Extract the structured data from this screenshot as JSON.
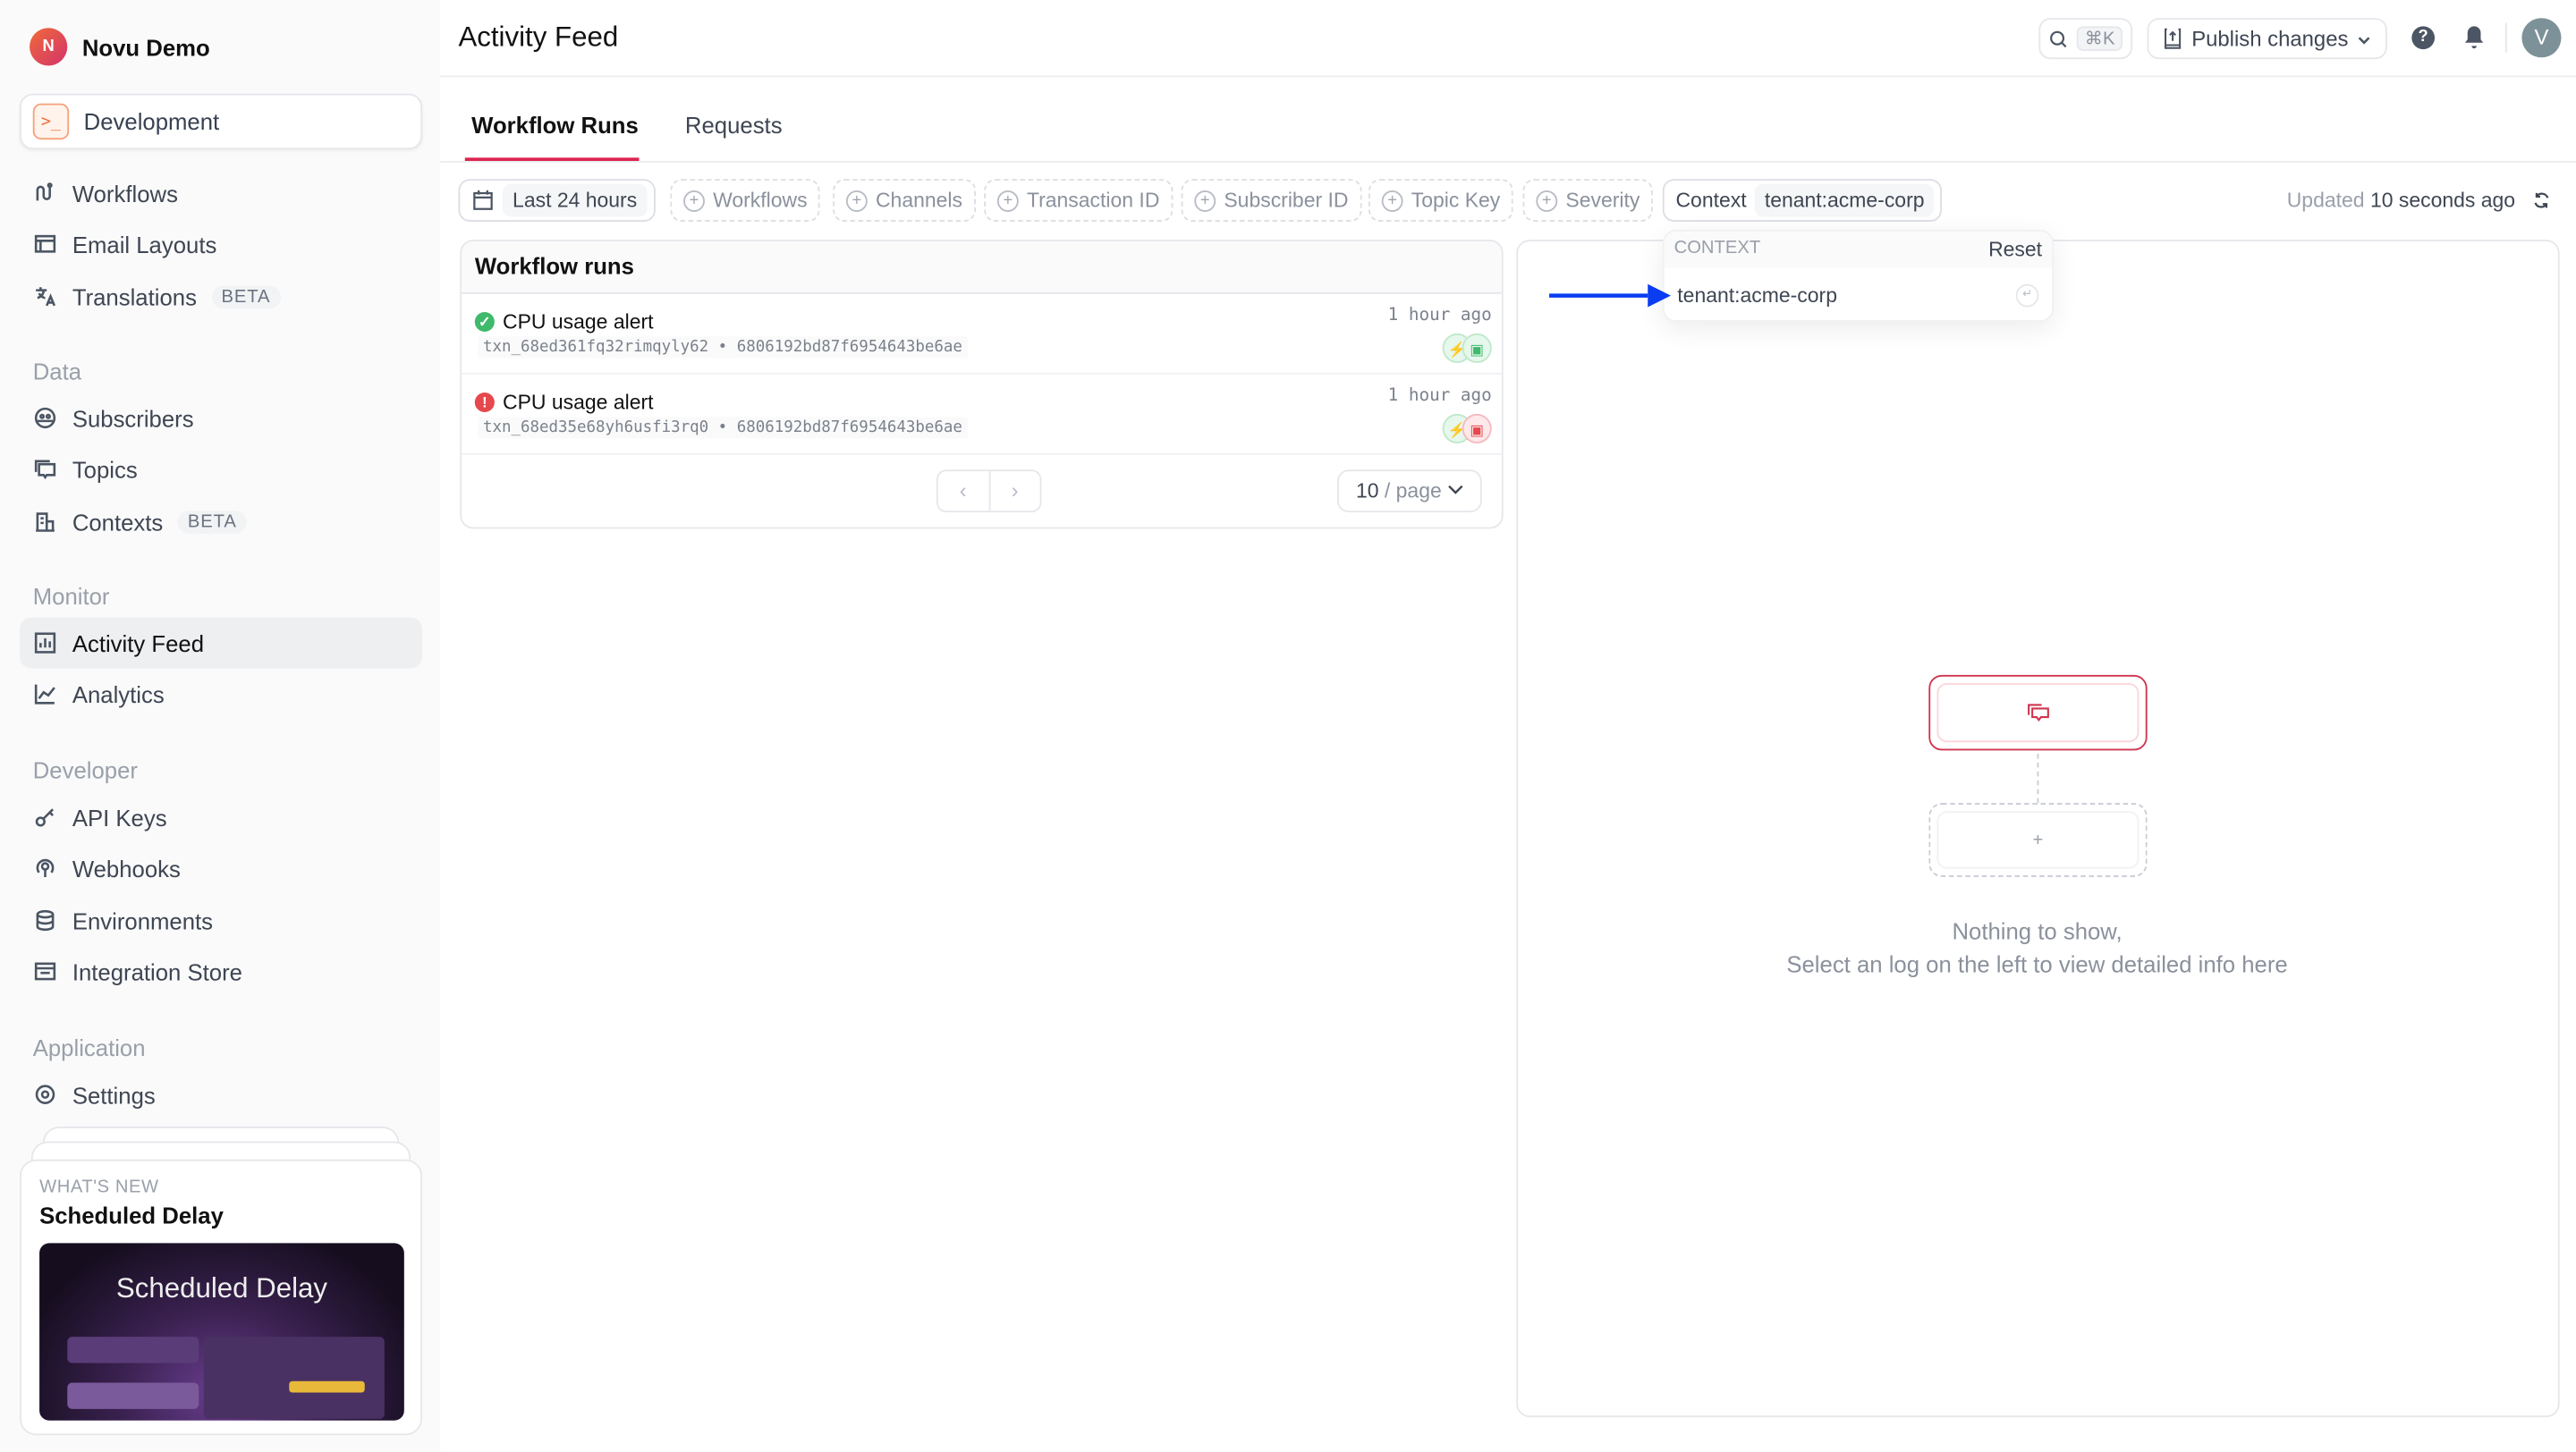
{
  "sidebar": {
    "org": {
      "initial": "N",
      "name": "Novu Demo"
    },
    "environment": {
      "label": "Development",
      "icon": "terminal-icon"
    },
    "items_top": [
      {
        "label": "Workflows",
        "icon": "workflow-icon"
      },
      {
        "label": "Email Layouts",
        "icon": "layout-icon"
      },
      {
        "label": "Translations",
        "icon": "translate-icon",
        "badge": "BETA"
      }
    ],
    "sections": {
      "data": "Data",
      "monitor": "Monitor",
      "developer": "Developer",
      "application": "Application"
    },
    "items_data": [
      {
        "label": "Subscribers",
        "icon": "subscribers-icon"
      },
      {
        "label": "Topics",
        "icon": "topics-icon"
      },
      {
        "label": "Contexts",
        "icon": "building-icon",
        "badge": "BETA"
      }
    ],
    "items_monitor": [
      {
        "label": "Activity Feed",
        "icon": "activity-icon",
        "active": true
      },
      {
        "label": "Analytics",
        "icon": "chart-icon"
      }
    ],
    "items_developer": [
      {
        "label": "API Keys",
        "icon": "key-icon"
      },
      {
        "label": "Webhooks",
        "icon": "webhook-icon"
      },
      {
        "label": "Environments",
        "icon": "database-icon"
      },
      {
        "label": "Integration Store",
        "icon": "store-icon"
      }
    ],
    "items_application": [
      {
        "label": "Settings",
        "icon": "gear-icon"
      }
    ],
    "whats_new": {
      "kicker": "WHAT'S NEW",
      "title": "Scheduled Delay",
      "image_title": "Scheduled Delay"
    }
  },
  "header": {
    "title": "Activity Feed",
    "search_shortcut": "⌘K",
    "publish_label": "Publish changes",
    "avatar_initial": "V"
  },
  "tabs": [
    {
      "label": "Workflow Runs",
      "active": true
    },
    {
      "label": "Requests",
      "active": false
    }
  ],
  "filters": {
    "date": "Last 24 hours",
    "chips": [
      "Workflows",
      "Channels",
      "Transaction ID",
      "Subscriber ID",
      "Topic Key",
      "Severity"
    ],
    "context": {
      "label": "Context",
      "value": "tenant:acme-corp"
    },
    "updated_prefix": "Updated",
    "updated_value": "10 seconds ago"
  },
  "runs": {
    "title": "Workflow runs",
    "rows": [
      {
        "name": "CPU usage alert",
        "status": "success",
        "txn": "txn_68ed361fq32rimqyly62",
        "subscriber": "6806192bd87f6954643be6ae",
        "time": "1 hour ago"
      },
      {
        "name": "CPU usage alert",
        "status": "error",
        "txn": "txn_68ed35e68yh6usfi3rq0",
        "subscriber": "6806192bd87f6954643be6ae",
        "time": "1 hour ago"
      }
    ],
    "separator": "•",
    "per_page_value": "10",
    "per_page_unit": "/ page"
  },
  "context_dropdown": {
    "header": "CONTEXT",
    "reset": "Reset",
    "option": "tenant:acme-corp"
  },
  "empty_state": {
    "line1": "Nothing to show,",
    "line2": "Select an log on the left to view detailed info here",
    "add": "+"
  },
  "colors": {
    "accent": "#dd2450",
    "success": "#3fb96b",
    "error": "#e5484d",
    "arrow": "#0a3cf0"
  }
}
